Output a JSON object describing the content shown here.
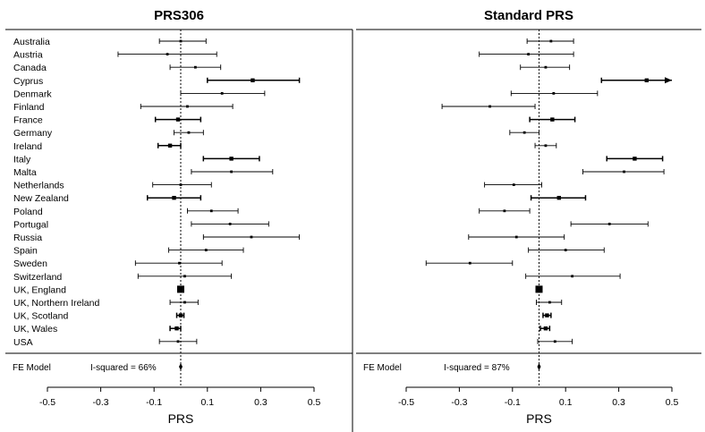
{
  "chart_data": [
    {
      "type": "forest",
      "title": "PRS306",
      "xlabel": "PRS",
      "xlim": [
        -0.5,
        0.5
      ],
      "xticks": [
        "-0.5",
        "-0.3",
        "-0.1",
        "0.1",
        "0.3",
        "0.5"
      ],
      "reference_line": 0.0,
      "fe_label": "FE Model",
      "heterogeneity": "I-squared = 66%",
      "fe_estimate": 0.0,
      "rows": [
        {
          "label": "Australia",
          "est": 0.0,
          "lo": -0.08,
          "hi": 0.095
        },
        {
          "label": "Austria",
          "est": -0.05,
          "lo": -0.235,
          "hi": 0.135
        },
        {
          "label": "Canada",
          "est": 0.055,
          "lo": -0.04,
          "hi": 0.15
        },
        {
          "label": "Cyprus",
          "est": 0.27,
          "lo": 0.1,
          "hi": 0.445,
          "weight": "large"
        },
        {
          "label": "Denmark",
          "est": 0.155,
          "lo": 0.0,
          "hi": 0.315
        },
        {
          "label": "Finland",
          "est": 0.025,
          "lo": -0.15,
          "hi": 0.195
        },
        {
          "label": "France",
          "est": -0.01,
          "lo": -0.095,
          "hi": 0.075,
          "weight": "large"
        },
        {
          "label": "Germany",
          "est": 0.03,
          "lo": -0.025,
          "hi": 0.085
        },
        {
          "label": "Ireland",
          "est": -0.04,
          "lo": -0.085,
          "hi": 0.0,
          "weight": "large"
        },
        {
          "label": "Italy",
          "est": 0.19,
          "lo": 0.085,
          "hi": 0.295,
          "weight": "large"
        },
        {
          "label": "Malta",
          "est": 0.19,
          "lo": 0.04,
          "hi": 0.345
        },
        {
          "label": "Netherlands",
          "est": 0.0,
          "lo": -0.105,
          "hi": 0.115
        },
        {
          "label": "New Zealand",
          "est": -0.025,
          "lo": -0.125,
          "hi": 0.075,
          "weight": "large"
        },
        {
          "label": "Poland",
          "est": 0.115,
          "lo": 0.025,
          "hi": 0.215
        },
        {
          "label": "Portugal",
          "est": 0.185,
          "lo": 0.04,
          "hi": 0.33
        },
        {
          "label": "Russia",
          "est": 0.265,
          "lo": 0.085,
          "hi": 0.445
        },
        {
          "label": "Spain",
          "est": 0.095,
          "lo": -0.045,
          "hi": 0.235
        },
        {
          "label": "Sweden",
          "est": -0.005,
          "lo": -0.17,
          "hi": 0.155
        },
        {
          "label": "Switzerland",
          "est": 0.015,
          "lo": -0.16,
          "hi": 0.19
        },
        {
          "label": "UK, England",
          "est": 0.0,
          "lo": -0.005,
          "hi": 0.005,
          "weight": "box"
        },
        {
          "label": "UK, Northern Ireland",
          "est": 0.015,
          "lo": -0.04,
          "hi": 0.065
        },
        {
          "label": "UK, Scotland",
          "est": 0.0,
          "lo": -0.015,
          "hi": 0.012,
          "weight": "large"
        },
        {
          "label": "UK, Wales",
          "est": -0.015,
          "lo": -0.04,
          "hi": 0.0,
          "weight": "large"
        },
        {
          "label": "USA",
          "est": -0.01,
          "lo": -0.08,
          "hi": 0.06
        }
      ]
    },
    {
      "type": "forest",
      "title": "Standard PRS",
      "xlabel": "PRS",
      "xlim": [
        -0.5,
        0.5
      ],
      "xticks": [
        "-0.5",
        "-0.3",
        "-0.1",
        "0.1",
        "0.3",
        "0.5"
      ],
      "reference_line": 0.0,
      "fe_label": "FE Model",
      "heterogeneity": "I-squared = 87%",
      "fe_estimate": 0.0,
      "rows": [
        {
          "label": "Australia",
          "est": 0.045,
          "lo": -0.045,
          "hi": 0.13
        },
        {
          "label": "Austria",
          "est": -0.04,
          "lo": -0.225,
          "hi": 0.13
        },
        {
          "label": "Canada",
          "est": 0.025,
          "lo": -0.07,
          "hi": 0.115
        },
        {
          "label": "Cyprus",
          "est": 0.405,
          "lo": 0.235,
          "hi": 0.5,
          "weight": "large",
          "arrow": true
        },
        {
          "label": "Denmark",
          "est": 0.055,
          "lo": -0.105,
          "hi": 0.22
        },
        {
          "label": "Finland",
          "est": -0.185,
          "lo": -0.365,
          "hi": -0.015
        },
        {
          "label": "France",
          "est": 0.05,
          "lo": -0.035,
          "hi": 0.135,
          "weight": "large"
        },
        {
          "label": "Germany",
          "est": -0.055,
          "lo": -0.11,
          "hi": 0.0
        },
        {
          "label": "Ireland",
          "est": 0.025,
          "lo": -0.015,
          "hi": 0.065
        },
        {
          "label": "Italy",
          "est": 0.36,
          "lo": 0.255,
          "hi": 0.465,
          "weight": "large"
        },
        {
          "label": "Malta",
          "est": 0.32,
          "lo": 0.165,
          "hi": 0.47
        },
        {
          "label": "Netherlands",
          "est": -0.095,
          "lo": -0.205,
          "hi": 0.01
        },
        {
          "label": "New Zealand",
          "est": 0.075,
          "lo": -0.03,
          "hi": 0.175,
          "weight": "large"
        },
        {
          "label": "Poland",
          "est": -0.13,
          "lo": -0.225,
          "hi": -0.035
        },
        {
          "label": "Portugal",
          "est": 0.265,
          "lo": 0.12,
          "hi": 0.41
        },
        {
          "label": "Russia",
          "est": -0.085,
          "lo": -0.265,
          "hi": 0.095
        },
        {
          "label": "Spain",
          "est": 0.1,
          "lo": -0.04,
          "hi": 0.245
        },
        {
          "label": "Sweden",
          "est": -0.26,
          "lo": -0.425,
          "hi": -0.1
        },
        {
          "label": "Switzerland",
          "est": 0.125,
          "lo": -0.05,
          "hi": 0.305
        },
        {
          "label": "UK, England",
          "est": 0.0,
          "lo": -0.005,
          "hi": 0.005,
          "weight": "box"
        },
        {
          "label": "UK, Northern Ireland",
          "est": 0.04,
          "lo": -0.01,
          "hi": 0.085
        },
        {
          "label": "UK, Scotland",
          "est": 0.03,
          "lo": 0.015,
          "hi": 0.045,
          "weight": "large"
        },
        {
          "label": "UK, Wales",
          "est": 0.025,
          "lo": 0.005,
          "hi": 0.04,
          "weight": "large"
        },
        {
          "label": "USA",
          "est": 0.06,
          "lo": -0.005,
          "hi": 0.125
        }
      ]
    }
  ]
}
